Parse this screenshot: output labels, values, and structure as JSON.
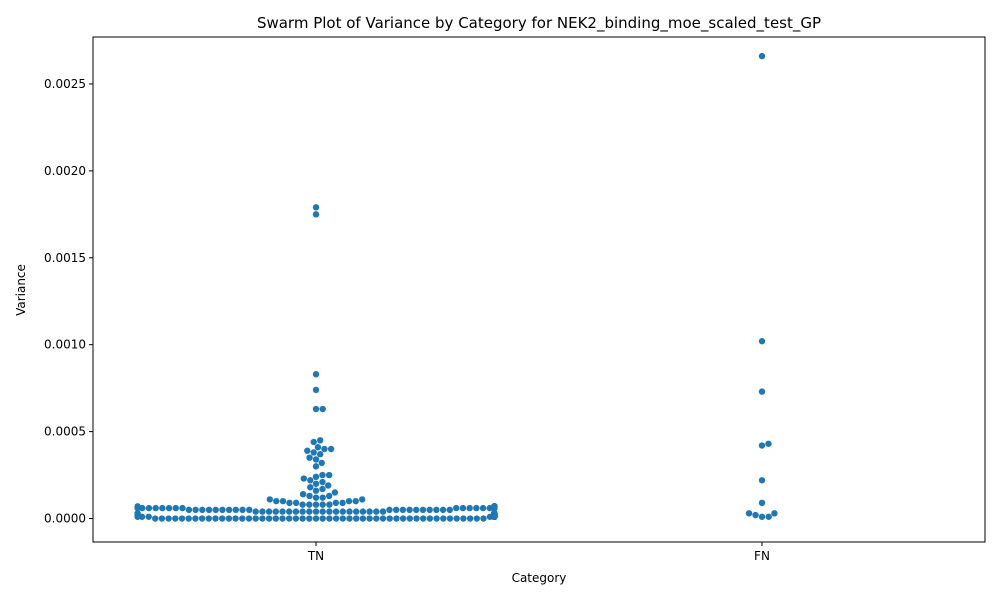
{
  "chart_data": {
    "type": "scatter",
    "subtype": "swarm",
    "title": "Swarm Plot of Variance by Category for NEK2_binding_moe_scaled_test_GP",
    "xlabel": "Category",
    "ylabel": "Variance",
    "categories": [
      "TN",
      "FN"
    ],
    "ylim": [
      -0.000135,
      0.00277
    ],
    "yticks": [
      0.0,
      0.0005,
      0.001,
      0.0015,
      0.002,
      0.0025
    ],
    "ytick_labels": [
      "0.0000",
      "0.0005",
      "0.0010",
      "0.0015",
      "0.0020",
      "0.0025"
    ],
    "grid": false,
    "color": "#1f77b4",
    "series": [
      {
        "category": "TN",
        "values": [
          0.00179,
          0.00175,
          0.00083,
          0.00074,
          0.00063,
          0.00063,
          0.00045,
          0.00044,
          0.00041,
          0.0004,
          0.0004,
          0.00039,
          0.00038,
          0.00037,
          0.00035,
          0.00034,
          0.00032,
          0.0003,
          0.00025,
          0.00025,
          0.00024,
          0.00023,
          0.00022,
          0.00021,
          0.0002,
          0.00019,
          0.00018,
          0.00017,
          0.00016,
          0.00015,
          0.00014,
          0.00013,
          0.00013,
          0.00012,
          0.00012,
          0.00011,
          0.00011,
          0.0001,
          0.0001,
          0.0001,
          0.0001,
          9e-05,
          9e-05,
          9e-05,
          9e-05,
          8e-05,
          8e-05,
          8e-05,
          8e-05,
          8e-05,
          7e-05,
          7e-05,
          7e-05,
          7e-05,
          7e-05,
          7e-05,
          7e-05,
          7e-05,
          7e-05,
          7e-05,
          7e-05,
          7e-05,
          6e-05,
          6e-05,
          6e-05,
          6e-05,
          6e-05,
          6e-05,
          6e-05,
          6e-05,
          6e-05,
          6e-05,
          6e-05,
          6e-05,
          6e-05,
          6e-05,
          6e-05,
          6e-05,
          5e-05,
          5e-05,
          5e-05,
          5e-05,
          5e-05,
          5e-05,
          5e-05,
          5e-05,
          5e-05,
          5e-05,
          5e-05,
          5e-05,
          5e-05,
          5e-05,
          5e-05,
          5e-05,
          5e-05,
          5e-05,
          5e-05,
          5e-05,
          4e-05,
          4e-05,
          4e-05,
          4e-05,
          4e-05,
          4e-05,
          4e-05,
          4e-05,
          4e-05,
          4e-05,
          4e-05,
          4e-05,
          4e-05,
          4e-05,
          4e-05,
          4e-05,
          4e-05,
          4e-05,
          4e-05,
          4e-05,
          3e-05,
          3e-05,
          3e-05,
          3e-05,
          3e-05,
          3e-05,
          3e-05,
          3e-05,
          3e-05,
          3e-05,
          3e-05,
          3e-05,
          3e-05,
          3e-05,
          3e-05,
          3e-05,
          3e-05,
          3e-05,
          3e-05,
          3e-05,
          2e-05,
          2e-05,
          2e-05,
          2e-05,
          2e-05,
          2e-05,
          2e-05,
          2e-05,
          2e-05,
          2e-05,
          2e-05,
          2e-05,
          2e-05,
          2e-05,
          2e-05,
          2e-05,
          2e-05,
          2e-05,
          2e-05,
          2e-05,
          2e-05,
          2e-05,
          2e-05,
          2e-05,
          2e-05,
          2e-05,
          2e-05,
          2e-05,
          2e-05,
          2e-05,
          1e-05,
          1e-05,
          1e-05,
          1e-05,
          1e-05,
          1e-05,
          1e-05,
          1e-05,
          1e-05,
          1e-05,
          1e-05,
          1e-05,
          1e-05,
          1e-05,
          1e-05,
          1e-05,
          1e-05,
          1e-05,
          1e-05,
          1e-05,
          1e-05,
          1e-05,
          1e-05,
          1e-05,
          1e-05,
          1e-05,
          1e-05,
          1e-05,
          1e-05,
          1e-05,
          1e-05,
          1e-05,
          1e-05,
          1e-05,
          1e-05,
          1e-05,
          1e-05,
          1e-05,
          1e-05,
          1e-05,
          1e-05,
          1e-05,
          1e-05,
          1e-05,
          1e-05,
          1e-05,
          1e-05,
          1e-05,
          1e-05,
          1e-05,
          0.0,
          0.0,
          0.0,
          0.0,
          0.0,
          0.0,
          0.0,
          0.0,
          0.0,
          0.0,
          0.0,
          0.0,
          0.0,
          0.0,
          0.0,
          0.0,
          0.0,
          0.0,
          0.0,
          0.0,
          0.0,
          0.0,
          0.0,
          0.0,
          0.0,
          0.0,
          0.0,
          0.0,
          0.0,
          0.0,
          0.0,
          0.0,
          0.0,
          0.0,
          0.0,
          0.0,
          0.0,
          0.0,
          0.0,
          0.0,
          0.0,
          0.0,
          0.0,
          0.0,
          0.0,
          0.0,
          0.0,
          0.0,
          0.0,
          0.0
        ]
      },
      {
        "category": "FN",
        "values": [
          0.00266,
          0.00102,
          0.00073,
          0.00043,
          0.00042,
          0.00022,
          9e-05,
          3e-05,
          3e-05,
          2e-05,
          1e-05,
          1e-05
        ]
      }
    ]
  }
}
